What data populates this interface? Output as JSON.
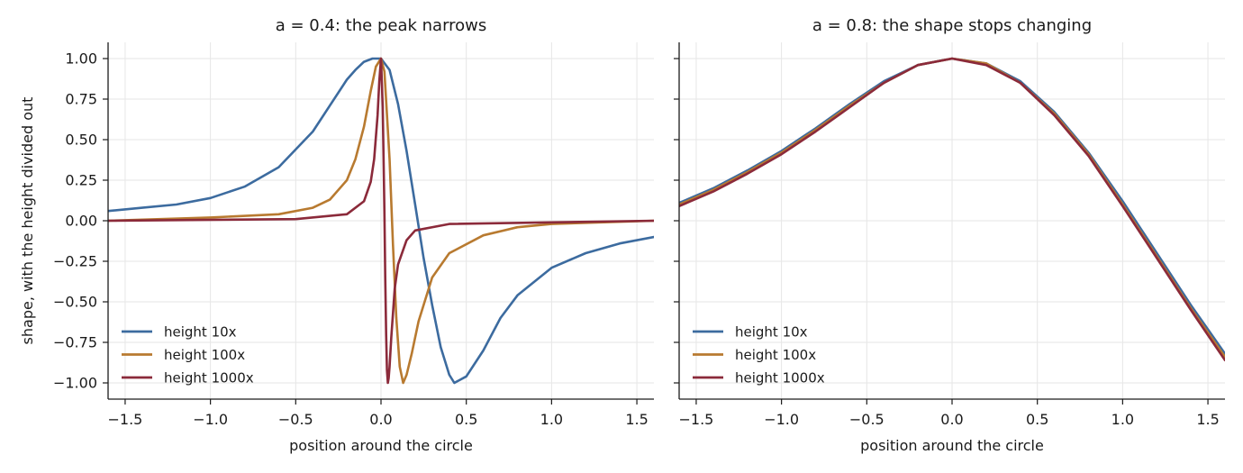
{
  "chart_data": [
    {
      "type": "line",
      "title": "a = 0.4: the peak narrows",
      "xlabel": "position around the circle",
      "ylabel": "shape, with the height divided out",
      "xlim": [
        -1.6,
        1.6
      ],
      "ylim": [
        -1.1,
        1.1
      ],
      "xticks": [
        "−1.5",
        "−1.0",
        "−0.5",
        "0.0",
        "0.5",
        "1.0",
        "1.5"
      ],
      "yticks": [
        "−1.00",
        "−0.75",
        "−0.50",
        "−0.25",
        "0.00",
        "0.25",
        "0.50",
        "0.75",
        "1.00"
      ],
      "grid": true,
      "legend_position": "lower-left",
      "series": [
        {
          "name": "height 10x",
          "color": "#3c6b9f",
          "x": [
            -1.6,
            -1.4,
            -1.2,
            -1.0,
            -0.8,
            -0.6,
            -0.4,
            -0.3,
            -0.2,
            -0.15,
            -0.1,
            -0.05,
            0.0,
            0.05,
            0.1,
            0.15,
            0.2,
            0.25,
            0.3,
            0.35,
            0.4,
            0.43,
            0.5,
            0.6,
            0.7,
            0.8,
            1.0,
            1.2,
            1.4,
            1.6
          ],
          "y": [
            0.06,
            0.08,
            0.1,
            0.14,
            0.21,
            0.33,
            0.55,
            0.71,
            0.87,
            0.93,
            0.98,
            1.0,
            1.0,
            0.93,
            0.72,
            0.43,
            0.1,
            -0.23,
            -0.52,
            -0.78,
            -0.95,
            -1.0,
            -0.96,
            -0.8,
            -0.6,
            -0.46,
            -0.29,
            -0.2,
            -0.14,
            -0.1
          ]
        },
        {
          "name": "height 100x",
          "color": "#b87a30",
          "x": [
            -1.6,
            -1.0,
            -0.6,
            -0.4,
            -0.3,
            -0.2,
            -0.15,
            -0.1,
            -0.06,
            -0.03,
            0.0,
            0.02,
            0.05,
            0.07,
            0.09,
            0.11,
            0.13,
            0.15,
            0.18,
            0.22,
            0.3,
            0.4,
            0.6,
            0.8,
            1.0,
            1.6
          ],
          "y": [
            0.0,
            0.02,
            0.04,
            0.08,
            0.13,
            0.25,
            0.38,
            0.58,
            0.8,
            0.95,
            1.0,
            0.92,
            0.38,
            -0.15,
            -0.6,
            -0.9,
            -1.0,
            -0.95,
            -0.82,
            -0.62,
            -0.35,
            -0.2,
            -0.09,
            -0.04,
            -0.02,
            0.0
          ]
        },
        {
          "name": "height 1000x",
          "color": "#8b2a3a",
          "x": [
            -1.6,
            -0.5,
            -0.2,
            -0.1,
            -0.06,
            -0.04,
            -0.02,
            -0.01,
            0.0,
            0.01,
            0.015,
            0.02,
            0.025,
            0.03,
            0.035,
            0.04,
            0.045,
            0.05,
            0.06,
            0.08,
            0.1,
            0.15,
            0.2,
            0.4,
            1.6
          ],
          "y": [
            0.0,
            0.01,
            0.04,
            0.12,
            0.24,
            0.38,
            0.65,
            0.86,
            1.0,
            0.7,
            0.4,
            0.05,
            -0.35,
            -0.7,
            -0.92,
            -1.0,
            -0.97,
            -0.9,
            -0.72,
            -0.42,
            -0.27,
            -0.12,
            -0.06,
            -0.02,
            0.0
          ]
        }
      ]
    },
    {
      "type": "line",
      "title": "a = 0.8: the shape stops changing",
      "xlabel": "position around the circle",
      "xlim": [
        -1.6,
        1.6
      ],
      "ylim": [
        -1.1,
        1.1
      ],
      "xticks": [
        "−1.5",
        "−1.0",
        "−0.5",
        "0.0",
        "0.5",
        "1.0",
        "1.5"
      ],
      "grid": true,
      "legend_position": "lower-left",
      "series": [
        {
          "name": "height 10x",
          "color": "#3c6b9f",
          "x": [
            -1.6,
            -1.4,
            -1.2,
            -1.0,
            -0.8,
            -0.6,
            -0.4,
            -0.2,
            0.0,
            0.2,
            0.4,
            0.6,
            0.8,
            1.0,
            1.2,
            1.4,
            1.6
          ],
          "y": [
            0.11,
            0.2,
            0.31,
            0.43,
            0.57,
            0.72,
            0.86,
            0.96,
            1.0,
            0.97,
            0.86,
            0.67,
            0.42,
            0.12,
            -0.2,
            -0.52,
            -0.82
          ]
        },
        {
          "name": "height 100x",
          "color": "#b87a30",
          "x": [
            -1.6,
            -1.4,
            -1.2,
            -1.0,
            -0.8,
            -0.6,
            -0.4,
            -0.2,
            0.0,
            0.2,
            0.4,
            0.6,
            0.8,
            1.0,
            1.2,
            1.4,
            1.6
          ],
          "y": [
            0.1,
            0.19,
            0.3,
            0.42,
            0.56,
            0.71,
            0.85,
            0.96,
            1.0,
            0.97,
            0.85,
            0.66,
            0.41,
            0.1,
            -0.22,
            -0.54,
            -0.84
          ]
        },
        {
          "name": "height 1000x",
          "color": "#8b2a3a",
          "x": [
            -1.6,
            -1.4,
            -1.2,
            -1.0,
            -0.8,
            -0.6,
            -0.4,
            -0.2,
            0.0,
            0.2,
            0.4,
            0.6,
            0.8,
            1.0,
            1.2,
            1.4,
            1.6
          ],
          "y": [
            0.09,
            0.18,
            0.29,
            0.41,
            0.55,
            0.7,
            0.85,
            0.96,
            1.0,
            0.96,
            0.85,
            0.65,
            0.4,
            0.09,
            -0.23,
            -0.55,
            -0.86
          ]
        }
      ]
    }
  ]
}
